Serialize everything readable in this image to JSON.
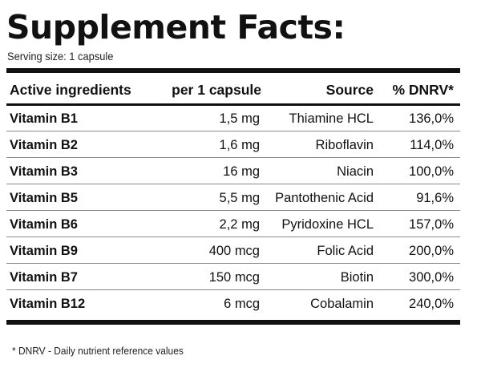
{
  "title": "Supplement Facts:",
  "serving_size": "Serving size: 1 capsule",
  "table": {
    "headers": {
      "ingredient": "Active ingredients",
      "dose": "per 1 capsule",
      "source": "Source",
      "dnrv": "% DNRV*"
    },
    "rows": [
      {
        "ingredient": "Vitamin B1",
        "dose": "1,5 mg",
        "source": "Thiamine HCL",
        "dnrv": "136,0%"
      },
      {
        "ingredient": "Vitamin B2",
        "dose": "1,6 mg",
        "source": "Riboflavin",
        "dnrv": "114,0%"
      },
      {
        "ingredient": "Vitamin B3",
        "dose": "16 mg",
        "source": "Niacin",
        "dnrv": "100,0%"
      },
      {
        "ingredient": "Vitamin B5",
        "dose": "5,5 mg",
        "source": "Pantothenic Acid",
        "dnrv": "91,6%"
      },
      {
        "ingredient": "Vitamin B6",
        "dose": "2,2 mg",
        "source": "Pyridoxine HCL",
        "dnrv": "157,0%"
      },
      {
        "ingredient": "Vitamin B9",
        "dose": "400 mcg",
        "source": "Folic Acid",
        "dnrv": "200,0%"
      },
      {
        "ingredient": "Vitamin B7",
        "dose": "150 mcg",
        "source": "Biotin",
        "dnrv": "300,0%"
      },
      {
        "ingredient": "Vitamin B12",
        "dose": "6 mcg",
        "source": "Cobalamin",
        "dnrv": "240,0%"
      }
    ]
  },
  "footnote": "* DNRV - Daily nutrient reference values"
}
